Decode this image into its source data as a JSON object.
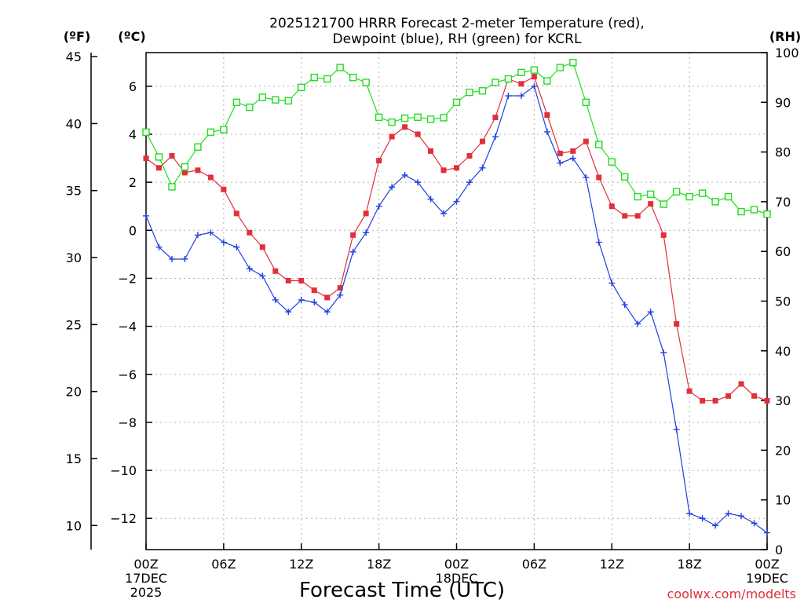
{
  "chart_data": {
    "type": "line",
    "title_line1": "2025121700 HRRR Forecast 2-meter Temperature (red),",
    "title_line2": "Dewpoint (blue), RH (green) for KCRL",
    "xlabel": "Forecast Time (UTC)",
    "credit": "coolwx.com/modelts",
    "unit_f": "(ºF)",
    "unit_c": "(ºC)",
    "unit_rh": "(RH)",
    "x_ticks": [
      {
        "hour": 0,
        "label": "00Z",
        "sub1": "17DEC",
        "sub2": "2025"
      },
      {
        "hour": 6,
        "label": "06Z"
      },
      {
        "hour": 12,
        "label": "12Z"
      },
      {
        "hour": 18,
        "label": "18Z"
      },
      {
        "hour": 24,
        "label": "00Z",
        "sub1": "18DEC"
      },
      {
        "hour": 30,
        "label": "06Z"
      },
      {
        "hour": 36,
        "label": "12Z"
      },
      {
        "hour": 42,
        "label": "18Z"
      },
      {
        "hour": 48,
        "label": "00Z",
        "sub1": "19DEC"
      }
    ],
    "xlim": [
      0,
      48
    ],
    "ylim_c": [
      -13.3,
      7.4
    ],
    "ylim_f": [
      8.2,
      45.3
    ],
    "ylim_rh": [
      0,
      100
    ],
    "yticks_c": [
      6,
      4,
      2,
      0,
      -2,
      -4,
      -6,
      -8,
      -10,
      -12
    ],
    "yticks_f": [
      45,
      40,
      35,
      30,
      25,
      20,
      15,
      10
    ],
    "yticks_rh": [
      100,
      90,
      80,
      70,
      60,
      50,
      40,
      30,
      20,
      10,
      0
    ],
    "series": [
      {
        "name": "Temperature",
        "units": "C",
        "color": "#e0303a",
        "marker": "filled-square",
        "values": [
          3.0,
          2.6,
          3.1,
          2.4,
          2.5,
          2.2,
          1.7,
          0.7,
          -0.1,
          -0.7,
          -1.7,
          -2.1,
          -2.1,
          -2.5,
          -2.8,
          -2.4,
          -0.2,
          0.7,
          2.9,
          3.9,
          4.3,
          4.0,
          3.3,
          2.5,
          2.6,
          3.1,
          3.7,
          4.7,
          6.3,
          6.1,
          6.4,
          4.8,
          3.2,
          3.3,
          3.7,
          2.2,
          1.0,
          0.6,
          0.6,
          1.1,
          -0.2,
          -3.9,
          -6.7,
          -7.1,
          -7.1,
          -6.9,
          -6.4,
          -6.9,
          -7.1
        ]
      },
      {
        "name": "Dewpoint",
        "units": "C",
        "color": "#2040e0",
        "marker": "plus",
        "values": [
          0.6,
          -0.7,
          -1.2,
          -1.2,
          -0.2,
          -0.1,
          -0.5,
          -0.7,
          -1.6,
          -1.9,
          -2.9,
          -3.4,
          -2.9,
          -3.0,
          -3.4,
          -2.7,
          -0.9,
          -0.1,
          1.0,
          1.8,
          2.3,
          2.0,
          1.3,
          0.7,
          1.2,
          2.0,
          2.6,
          3.9,
          5.6,
          5.6,
          6.0,
          4.1,
          2.8,
          3.0,
          2.2,
          -0.5,
          -2.2,
          -3.1,
          -3.9,
          -3.4,
          -5.1,
          -8.3,
          -11.8,
          -12.0,
          -12.3,
          -11.8,
          -11.9,
          -12.2,
          -12.6
        ]
      },
      {
        "name": "RH",
        "units": "%",
        "color": "#20dd20",
        "marker": "open-square",
        "values": [
          84,
          79,
          73,
          77,
          81,
          84,
          84.5,
          90,
          89,
          91,
          90.5,
          90.3,
          93,
          95,
          94.7,
          97,
          95,
          94,
          87,
          86,
          86.8,
          87,
          86.6,
          86.9,
          90,
          92,
          92.3,
          94,
          94.7,
          96,
          96.5,
          94.3,
          97,
          98,
          90,
          81.5,
          78,
          75,
          71,
          71.5,
          69.5,
          72,
          71,
          71.7,
          70,
          71,
          68,
          68.4,
          67.5
        ]
      }
    ]
  }
}
